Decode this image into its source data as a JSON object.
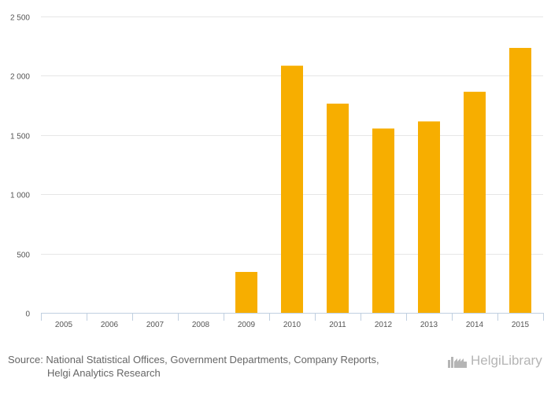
{
  "chart_data": {
    "type": "bar",
    "categories": [
      "2005",
      "2006",
      "2007",
      "2008",
      "2009",
      "2010",
      "2011",
      "2012",
      "2013",
      "2014",
      "2015"
    ],
    "values": [
      0,
      0,
      0,
      0,
      345,
      2085,
      1765,
      1555,
      1615,
      1865,
      2235
    ],
    "ylim": [
      0,
      2500
    ],
    "yticks": [
      0,
      500,
      1000,
      1500,
      2000,
      2500
    ],
    "ytick_labels": [
      "0",
      "500",
      "1 000",
      "1 500",
      "2 000",
      "2 500"
    ],
    "bar_color": "#f7ae00",
    "grid": true,
    "title": "",
    "xlabel": "",
    "ylabel": ""
  },
  "footer": {
    "source_line1": "Source: National Statistical Offices, Government Departments, Company Reports,",
    "source_line2": "Helgi Analytics Research",
    "logo_part1": "Helgi",
    "logo_part2": "Library"
  }
}
